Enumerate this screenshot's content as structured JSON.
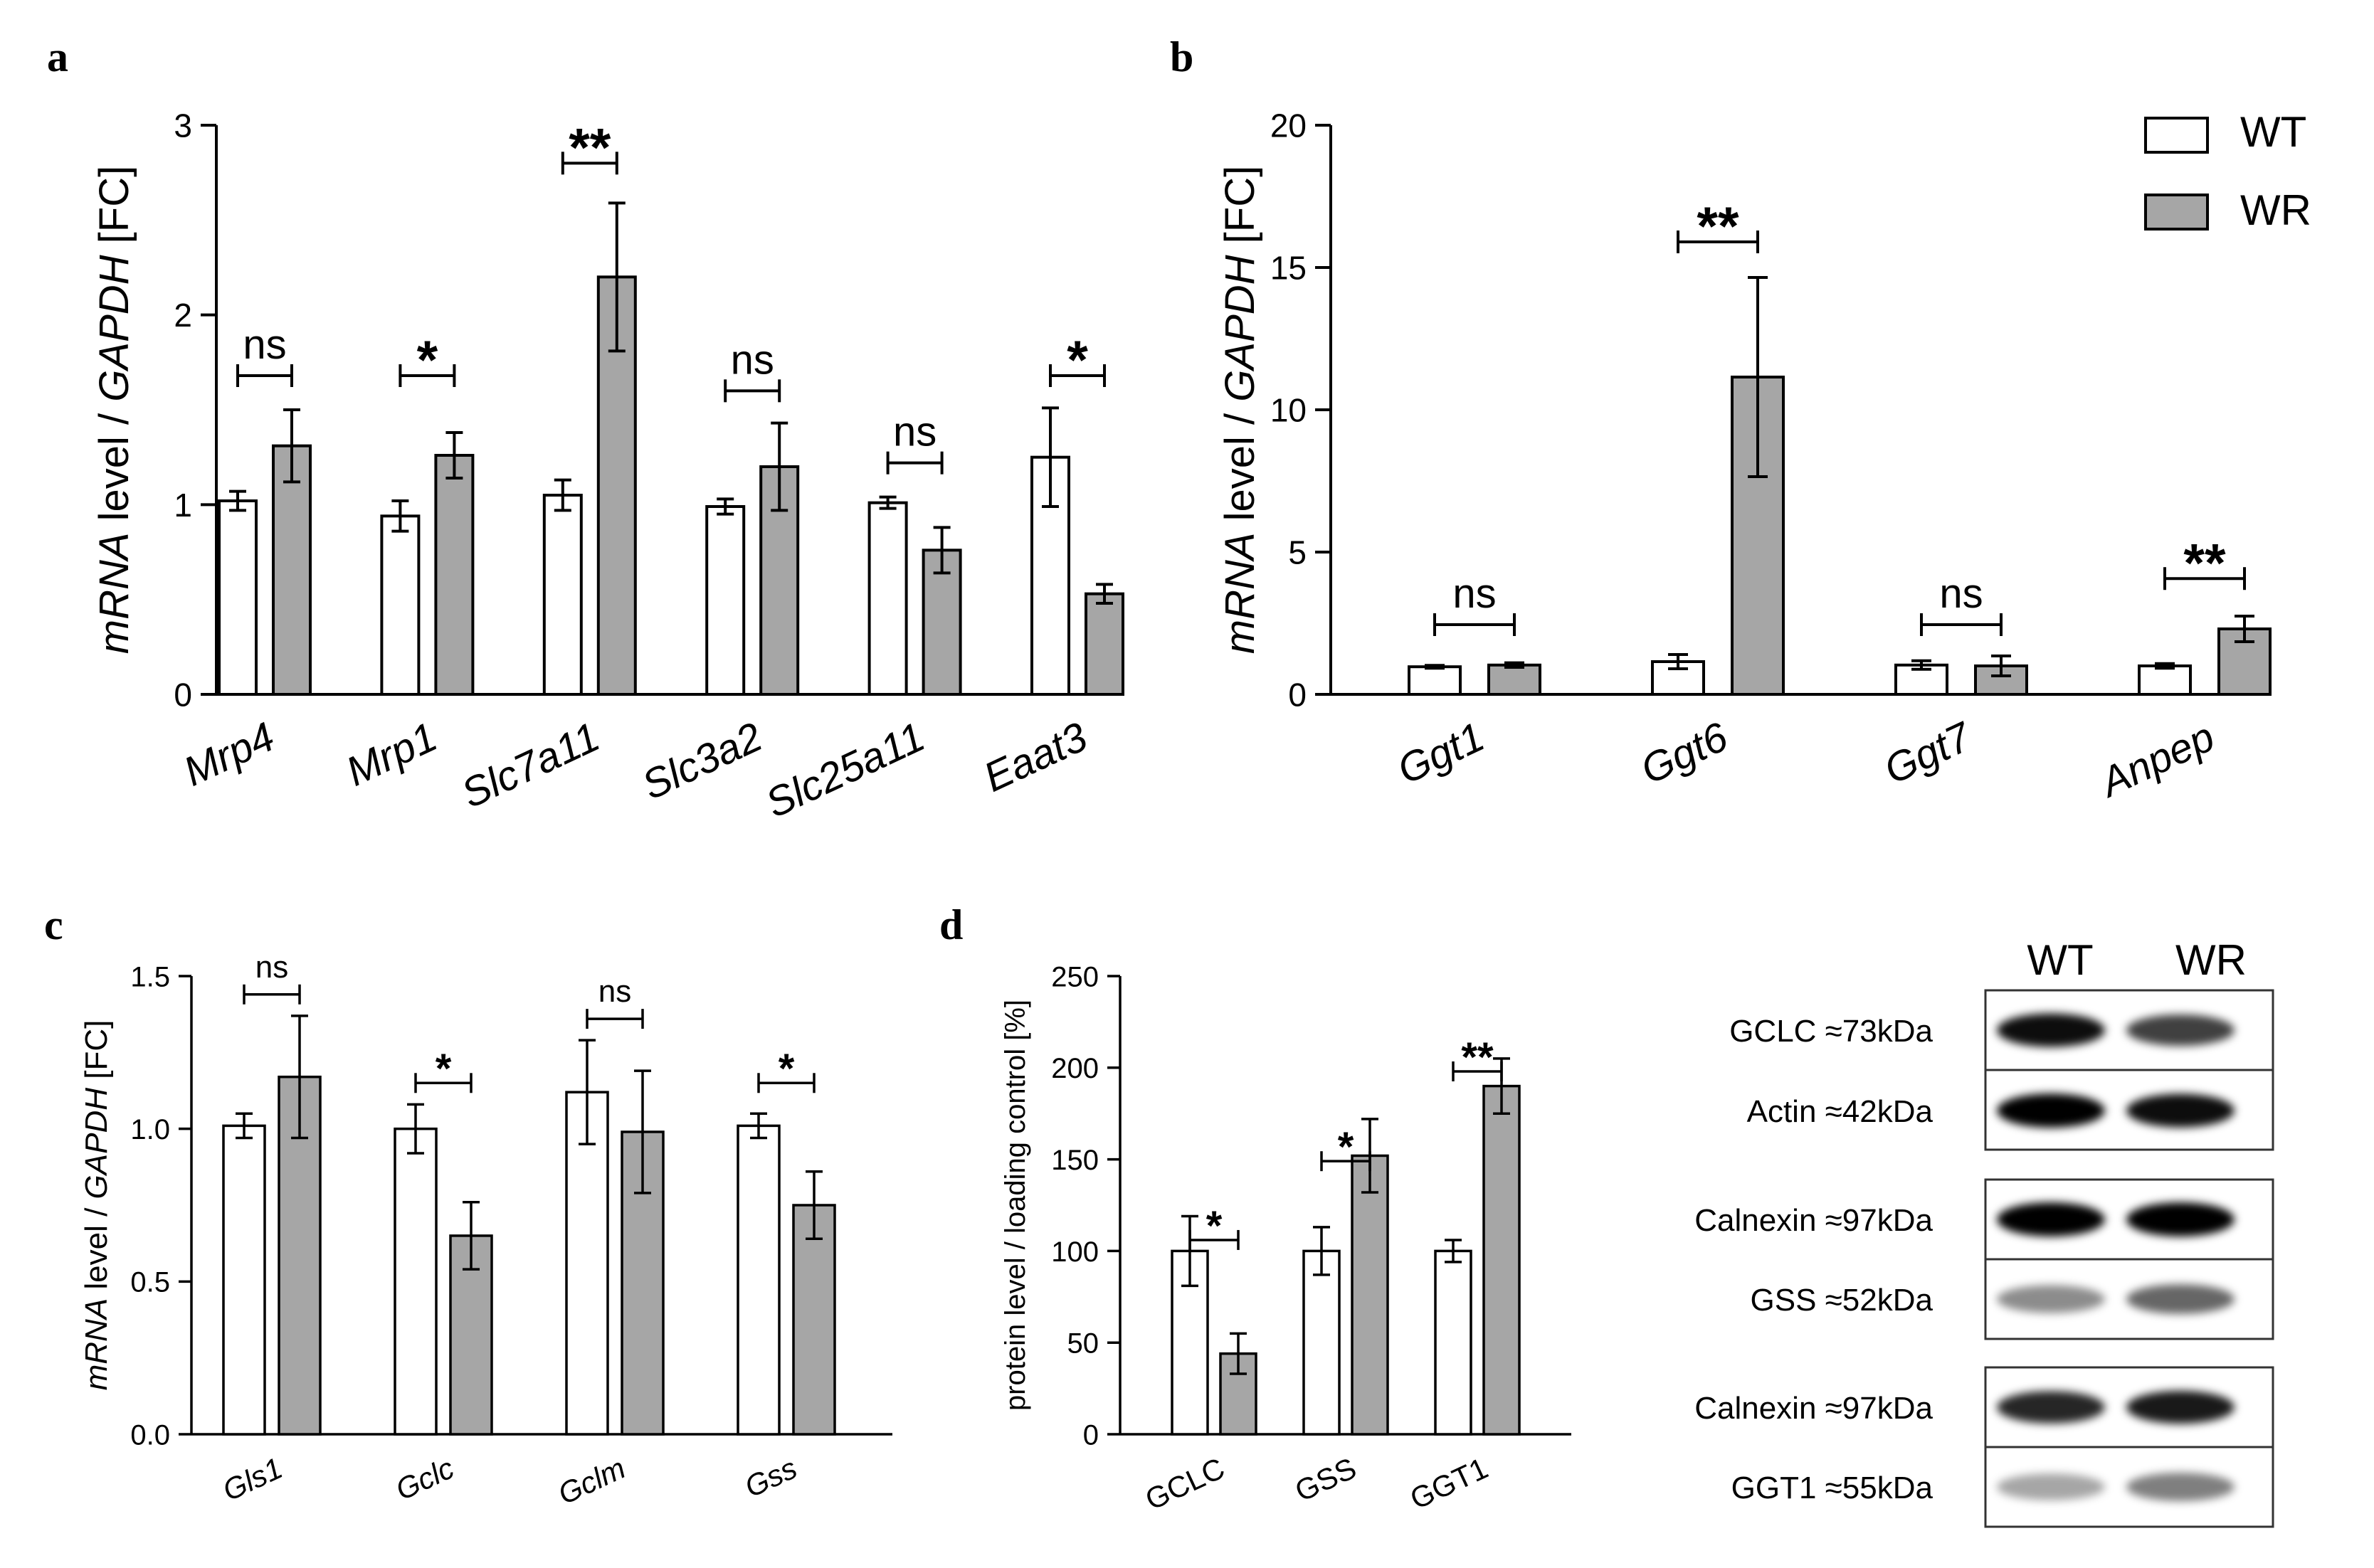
{
  "colors": {
    "wt_fill": "#ffffff",
    "wr_fill": "#a6a6a6",
    "stroke": "#000000"
  },
  "legend": {
    "wt": "WT",
    "wr": "WR"
  },
  "chart_data": [
    {
      "panel": "a",
      "type": "bar",
      "ylabel_italic": "mRNA",
      "ylabel_mid": " level / ",
      "ylabel_gene": "GAPDH",
      "ylabel_tail": " [FC]",
      "ylim": [
        0,
        3
      ],
      "yticks": [
        0,
        1,
        2,
        3
      ],
      "ytick_labels": [
        "0",
        "1",
        "2",
        "3"
      ],
      "categories": [
        "Mrp4",
        "Mrp1",
        "Slc7a11",
        "Slc3a2",
        "Slc25a11",
        "Eaat3"
      ],
      "series": [
        {
          "name": "WT",
          "values": [
            1.02,
            0.94,
            1.05,
            0.99,
            1.01,
            1.25
          ],
          "errors": [
            0.05,
            0.08,
            0.08,
            0.04,
            0.03,
            0.26
          ]
        },
        {
          "name": "WR",
          "values": [
            1.31,
            1.26,
            2.2,
            1.2,
            0.76,
            0.53
          ],
          "errors": [
            0.19,
            0.12,
            0.39,
            0.23,
            0.12,
            0.05
          ]
        }
      ],
      "significance": [
        {
          "text": "ns",
          "y": 1.68
        },
        {
          "text": "*",
          "y": 1.68
        },
        {
          "text": "**",
          "y": 2.8
        },
        {
          "text": "ns",
          "y": 1.6
        },
        {
          "text": "ns",
          "y": 1.22
        },
        {
          "text": "*",
          "y": 1.68
        }
      ]
    },
    {
      "panel": "b",
      "type": "bar",
      "ylabel_italic": "mRNA",
      "ylabel_mid": " level / ",
      "ylabel_gene": "GAPDH",
      "ylabel_tail": " [FC]",
      "ylim": [
        0,
        20
      ],
      "yticks": [
        0,
        5,
        10,
        15,
        20
      ],
      "ytick_labels": [
        "0",
        "5",
        "10",
        "15",
        "20"
      ],
      "categories": [
        "Ggt1",
        "Ggt6",
        "Ggt7",
        "Anpep"
      ],
      "series": [
        {
          "name": "WT",
          "values": [
            0.97,
            1.15,
            1.03,
            1.0
          ],
          "errors": [
            0.05,
            0.25,
            0.15,
            0.08
          ]
        },
        {
          "name": "WR",
          "values": [
            1.03,
            11.15,
            1.0,
            2.3
          ],
          "errors": [
            0.08,
            3.5,
            0.35,
            0.45
          ]
        }
      ],
      "significance": [
        {
          "text": "ns",
          "y": 2.45
        },
        {
          "text": "**",
          "y": 15.9
        },
        {
          "text": "ns",
          "y": 2.45
        },
        {
          "text": "**",
          "y": 4.07
        }
      ]
    },
    {
      "panel": "c",
      "type": "bar",
      "ylabel_italic": "mRNA",
      "ylabel_mid": " level / ",
      "ylabel_gene": "GAPDH",
      "ylabel_tail": " [FC]",
      "ylim": [
        0,
        1.5
      ],
      "yticks": [
        0,
        0.5,
        1.0,
        1.5
      ],
      "ytick_labels": [
        "0.0",
        "0.5",
        "1.0",
        "1.5"
      ],
      "categories": [
        "Gls1",
        "Gclc",
        "Gclm",
        "Gss"
      ],
      "series": [
        {
          "name": "WT",
          "values": [
            1.01,
            1.0,
            1.12,
            1.01
          ],
          "errors": [
            0.04,
            0.08,
            0.17,
            0.04
          ]
        },
        {
          "name": "WR",
          "values": [
            1.17,
            0.65,
            0.99,
            0.75
          ],
          "errors": [
            0.2,
            0.11,
            0.2,
            0.11
          ]
        }
      ],
      "significance": [
        {
          "text": "ns",
          "y": 1.44
        },
        {
          "text": "*",
          "y": 1.15
        },
        {
          "text": "ns",
          "y": 1.36
        },
        {
          "text": "*",
          "y": 1.15
        }
      ]
    },
    {
      "panel": "d",
      "type": "bar",
      "ylabel": "protein level / loading control [%]",
      "ylim": [
        0,
        250
      ],
      "yticks": [
        0,
        50,
        100,
        150,
        200,
        250
      ],
      "ytick_labels": [
        "0",
        "50",
        "100",
        "150",
        "200",
        "250"
      ],
      "categories": [
        "GCLC",
        "GSS",
        "GGT1"
      ],
      "series": [
        {
          "name": "WT",
          "values": [
            100,
            100,
            100
          ],
          "errors": [
            19,
            13,
            6
          ]
        },
        {
          "name": "WR",
          "values": [
            44,
            152,
            190
          ],
          "errors": [
            11,
            20,
            15
          ]
        }
      ],
      "significance": [
        {
          "text": "*",
          "y": 106
        },
        {
          "text": "*",
          "y": 149
        },
        {
          "text": "**",
          "y": 198
        }
      ]
    }
  ],
  "blot": {
    "col_labels": [
      "WT",
      "WR"
    ],
    "bands": [
      {
        "label": "GCLC ≈73kDa",
        "wt": 0.95,
        "wr": 0.75
      },
      {
        "label": "Actin ≈42kDa",
        "wt": 1.0,
        "wr": 0.95
      },
      {
        "label": "Calnexin ≈97kDa",
        "wt": 1.0,
        "wr": 1.0
      },
      {
        "label": "GSS ≈52kDa",
        "wt": 0.45,
        "wr": 0.6
      },
      {
        "label": "Calnexin ≈97kDa",
        "wt": 0.85,
        "wr": 0.9
      },
      {
        "label": "GGT1 ≈55kDa",
        "wt": 0.35,
        "wr": 0.5
      }
    ]
  }
}
